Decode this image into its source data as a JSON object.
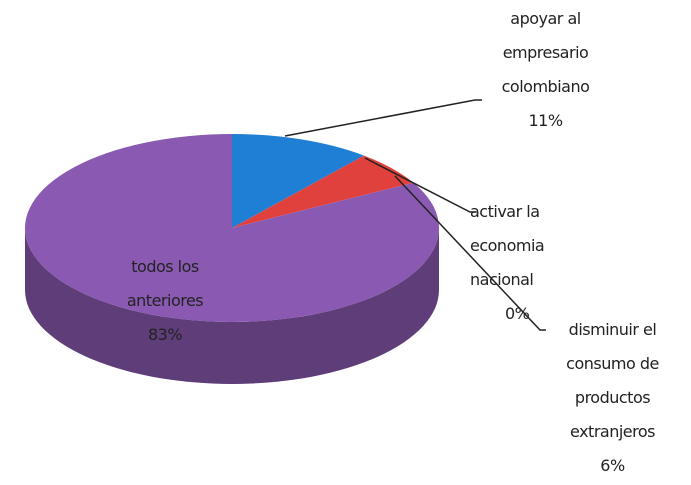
{
  "chart_data": {
    "type": "pie",
    "categories": [
      "apoyar al empresario colombiano",
      "activar la economia nacional",
      "disminuir el consumo de productos extranjeros",
      "todos los anteriores"
    ],
    "values": [
      11,
      0,
      6,
      83
    ],
    "value_labels": [
      "11%",
      "0%",
      "6%",
      "83%"
    ],
    "colors": [
      "#1f7fd4",
      "#9bbb59",
      "#e0413d",
      "#8a5ab2"
    ]
  }
}
